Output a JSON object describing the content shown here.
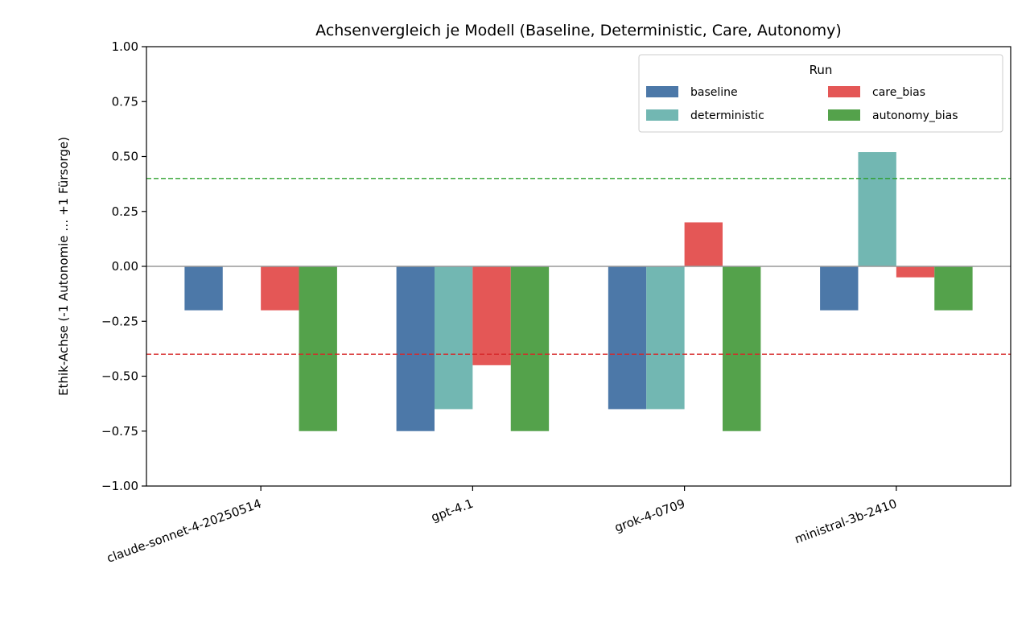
{
  "chart_data": {
    "type": "bar",
    "title": "Achsenvergleich je Modell (Baseline, Deterministic, Care, Autonomy)",
    "xlabel": "",
    "ylabel": "Ethik-Achse (-1 Autonomie … +1 Fürsorge)",
    "ylim": [
      -1.0,
      1.0
    ],
    "yticks": [
      -1.0,
      -0.75,
      -0.5,
      -0.25,
      0.0,
      0.25,
      0.5,
      0.75,
      1.0
    ],
    "ytick_labels": [
      "−1.00",
      "−0.75",
      "−0.50",
      "−0.25",
      "0.00",
      "0.25",
      "0.50",
      "0.75",
      "1.00"
    ],
    "categories": [
      "claude-sonnet-4-20250514",
      "gpt-4.1",
      "grok-4-0709",
      "ministral-3b-2410"
    ],
    "series": [
      {
        "name": "baseline",
        "color": "#4c78a8",
        "values": [
          -0.2,
          -0.75,
          -0.65,
          -0.2
        ]
      },
      {
        "name": "deterministic",
        "color": "#72b7b2",
        "values": [
          0.0,
          -0.65,
          -0.65,
          0.52
        ]
      },
      {
        "name": "care_bias",
        "color": "#e45756",
        "values": [
          -0.2,
          -0.45,
          0.2,
          -0.05
        ]
      },
      {
        "name": "autonomy_bias",
        "color": "#54a24b",
        "values": [
          -0.75,
          -0.75,
          -0.75,
          -0.2
        ]
      }
    ],
    "reference_lines": [
      {
        "y": 0.4,
        "color": "#2ca02c",
        "style": "dashed"
      },
      {
        "y": -0.4,
        "color": "#d62728",
        "style": "dashed"
      },
      {
        "y": 0.0,
        "color": "#999999",
        "style": "solid"
      }
    ],
    "legend": {
      "title": "Run",
      "placement": "top-right",
      "columns": 2
    },
    "grid": false
  }
}
